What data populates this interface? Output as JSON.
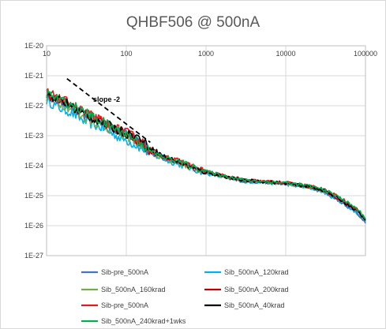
{
  "chart_data": {
    "type": "line",
    "title": "QHBF506 @ 500nA",
    "xlabel": "",
    "ylabel": "",
    "x_scale": "log",
    "y_scale": "log",
    "xlim": [
      10,
      100000
    ],
    "ylim": [
      1e-27,
      1e-20
    ],
    "x_ticks": [
      "10",
      "100",
      "1000",
      "10000",
      "100000"
    ],
    "y_ticks": [
      "1E-20",
      "1E-21",
      "1E-22",
      "1E-23",
      "1E-24",
      "1E-25",
      "1E-26",
      "1E-27"
    ],
    "grid": "horizontal and vertical",
    "legend_position": "bottom",
    "annotation": {
      "text": "slope -2",
      "line_from": [
        18,
        8e-22
      ],
      "line_to": [
        200,
        6e-24
      ]
    },
    "series": [
      {
        "name": "Sib-pre_500nA",
        "color": "#4472C4",
        "x": [
          10,
          15,
          20,
          30,
          50,
          80,
          100,
          150,
          200,
          300,
          500,
          800,
          1000,
          2000,
          3000,
          5000,
          10000,
          20000,
          30000,
          50000,
          80000,
          100000
        ],
        "y": [
          2.2e-22,
          1.3e-22,
          1e-22,
          5e-23,
          2.5e-23,
          1.4e-23,
          1.3e-23,
          6e-24,
          2.7e-24,
          1.8e-24,
          1.2e-24,
          7e-25,
          6e-25,
          4e-25,
          3e-25,
          2.8e-25,
          2.5e-25,
          2e-25,
          1.4e-25,
          6e-26,
          2.5e-26,
          1.2e-26
        ]
      },
      {
        "name": "Sib_500nA_120krad",
        "color": "#00B0F0",
        "x": [
          10,
          15,
          20,
          30,
          50,
          80,
          100,
          150,
          200,
          300,
          500,
          800,
          1000,
          2000,
          3000,
          5000,
          10000,
          20000,
          30000,
          50000,
          80000,
          100000
        ],
        "y": [
          1.5e-22,
          8e-23,
          6e-23,
          3e-23,
          1.8e-23,
          9e-24,
          7e-24,
          4e-24,
          2.4e-24,
          1.6e-24,
          1e-24,
          6.5e-25,
          5.5e-25,
          3.6e-25,
          3e-25,
          2.8e-25,
          2.4e-25,
          1.8e-25,
          1.3e-25,
          6e-26,
          2.5e-26,
          1.3e-26
        ]
      },
      {
        "name": "Sib_500nA_160krad",
        "color": "#70AD47",
        "x": [
          10,
          15,
          20,
          30,
          50,
          80,
          100,
          150,
          200,
          300,
          500,
          800,
          1000,
          2000,
          3000,
          5000,
          10000,
          20000,
          30000,
          50000,
          80000,
          100000
        ],
        "y": [
          2e-22,
          1.2e-22,
          8e-23,
          4e-23,
          2.2e-23,
          1.2e-23,
          1e-23,
          5e-24,
          2.6e-24,
          1.7e-24,
          1.1e-24,
          7e-25,
          6e-25,
          3.8e-25,
          3.1e-25,
          2.8e-25,
          2.5e-25,
          1.9e-25,
          1.4e-25,
          7e-26,
          3e-26,
          1.4e-26
        ]
      },
      {
        "name": "Sib_500nA_200krad",
        "color": "#C00000",
        "x": [
          10,
          15,
          20,
          30,
          50,
          80,
          100,
          150,
          200,
          300,
          500,
          800,
          1000,
          2000,
          3000,
          5000,
          10000,
          20000,
          30000,
          50000,
          80000,
          100000
        ],
        "y": [
          2.5e-22,
          1.4e-22,
          1.1e-22,
          5.5e-23,
          3e-23,
          1.5e-23,
          1.2e-23,
          6e-24,
          3e-24,
          1.9e-24,
          1.3e-24,
          7.5e-25,
          6.5e-25,
          4e-25,
          3.2e-25,
          3e-25,
          2.6e-25,
          2e-25,
          1.5e-25,
          7e-26,
          3e-26,
          1.5e-26
        ]
      },
      {
        "name": "Sib_500nA_40krad",
        "color": "#000000",
        "x": [
          10,
          15,
          20,
          30,
          50,
          80,
          100,
          150,
          200,
          300,
          500,
          800,
          1000,
          2000,
          3000,
          5000,
          10000,
          20000,
          30000,
          50000,
          80000,
          100000
        ],
        "y": [
          2.5e-22,
          1.5e-22,
          1e-22,
          5e-23,
          2.8e-23,
          1.5e-23,
          1.2e-23,
          8e-24,
          4e-24,
          2e-24,
          1.2e-24,
          7e-25,
          6e-25,
          4e-25,
          3.2e-25,
          3e-25,
          2.6e-25,
          2e-25,
          1.5e-25,
          7e-26,
          3e-26,
          1.5e-26
        ]
      },
      {
        "name": "Sib-pre_500nA",
        "color": "#E31A1C",
        "x": [
          10,
          15,
          20,
          30,
          50,
          80,
          100,
          150,
          200,
          300,
          500,
          800,
          1000,
          2000,
          3000,
          5000,
          10000,
          20000,
          30000,
          50000,
          80000,
          100000
        ],
        "y": [
          2.8e-22,
          1.6e-22,
          1.2e-22,
          6e-23,
          3e-23,
          1.6e-23,
          1.3e-23,
          7e-24,
          3.5e-24,
          2e-24,
          1.3e-24,
          8e-25,
          6.5e-25,
          4.2e-25,
          3.4e-25,
          3e-25,
          2.7e-25,
          2.1e-25,
          1.6e-25,
          8e-26,
          3.5e-26,
          1.6e-26
        ]
      },
      {
        "name": "Sib_500nA_240krad+1wks",
        "color": "#00B050",
        "x": [
          10,
          15,
          20,
          30,
          50,
          80,
          100,
          150,
          200,
          300,
          500,
          800,
          1000,
          2000,
          3000,
          5000,
          10000,
          20000,
          30000,
          50000,
          80000,
          100000
        ],
        "y": [
          2.6e-22,
          1.5e-22,
          1.1e-22,
          6e-23,
          3e-23,
          1.5e-23,
          1.2e-23,
          6e-24,
          3e-24,
          1.9e-24,
          1.3e-24,
          8e-25,
          6.5e-25,
          4.2e-25,
          3.3e-25,
          3e-25,
          2.7e-25,
          2.1e-25,
          1.6e-25,
          8e-26,
          3.5e-26,
          1.7e-26
        ]
      }
    ],
    "legend_order": [
      0,
      1,
      2,
      3,
      5,
      4,
      6
    ]
  }
}
